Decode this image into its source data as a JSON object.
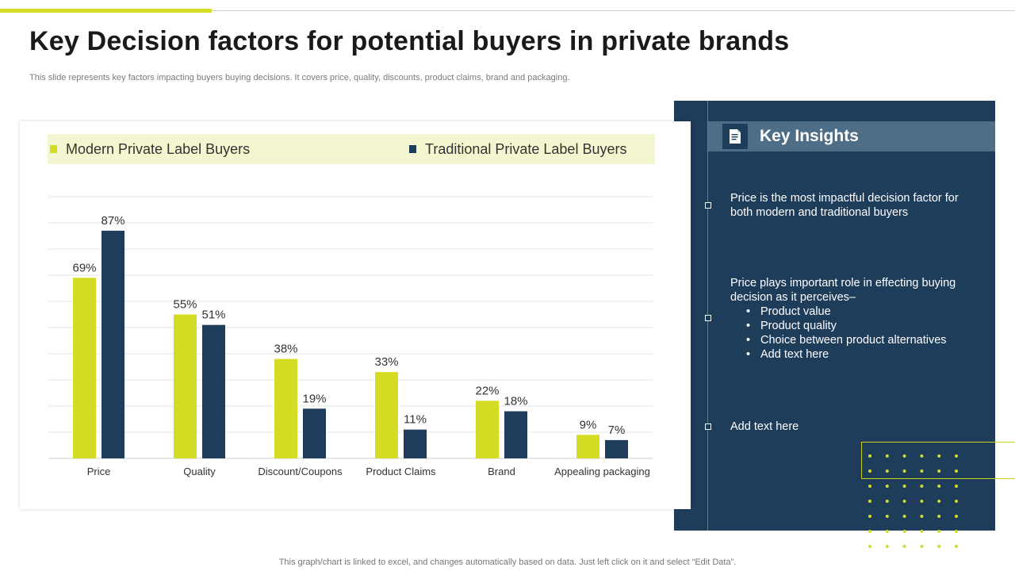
{
  "slide": {
    "title": "Key Decision factors for potential buyers in private brands",
    "subtitle": "This slide represents key factors impacting buyers buying decisions. It covers price, quality, discounts, product claims, brand and packaging.",
    "footer": "This graph/chart is linked to excel,  and changes automatically based on data. Just left click on it and select “Edit Data”."
  },
  "colors": {
    "accent": "#d4dc23",
    "navy": "#1e3d5a",
    "panel_header": "#4e6d87",
    "legend_bg": "#f4f6cf"
  },
  "chart_data": {
    "type": "bar",
    "categories": [
      "Price",
      "Quality",
      "Discount/Coupons",
      "Product Claims",
      "Brand",
      "Appealing packaging"
    ],
    "series": [
      {
        "name": "Modern Private Label Buyers",
        "color": "#d4dc23",
        "values": [
          69,
          55,
          38,
          33,
          22,
          9
        ]
      },
      {
        "name": "Traditional Private Label Buyers",
        "color": "#1e3d5a",
        "values": [
          87,
          51,
          19,
          11,
          18,
          7
        ]
      }
    ],
    "value_suffix": "%",
    "ylim": [
      0,
      100
    ],
    "grid": true,
    "legend": "top",
    "title": "",
    "xlabel": "",
    "ylabel": ""
  },
  "insights": {
    "icon": "document-icon",
    "title": "Key Insights",
    "point1": "Price is the most impactful decision factor for both modern and traditional buyers",
    "point2_intro": "Price plays important role in effecting buying decision as it perceives–",
    "point2_bullets": [
      "Product value",
      "Product quality",
      "Choice between product alternatives",
      "Add text here"
    ],
    "point3": "Add text here"
  }
}
